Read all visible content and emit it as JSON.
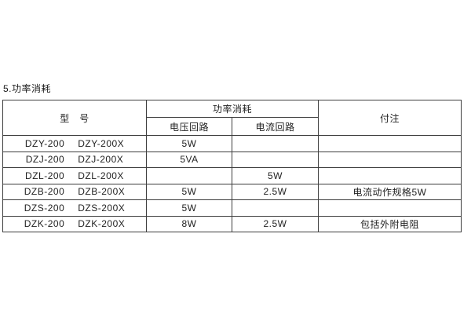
{
  "title": "5.功率消耗",
  "table": {
    "header": {
      "model": "型　号",
      "power_group": "功率消耗",
      "voltage_circuit": "电压回路",
      "current_circuit": "电流回路",
      "notes": "付注"
    },
    "rows": [
      {
        "model": [
          "DZY-200",
          "DZY-200X"
        ],
        "voltage": "5W",
        "current": "",
        "note": ""
      },
      {
        "model": [
          "DZJ-200",
          "DZJ-200X"
        ],
        "voltage": "5VA",
        "current": "",
        "note": ""
      },
      {
        "model": [
          "DZL-200",
          "DZL-200X"
        ],
        "voltage": "",
        "current": "5W",
        "note": ""
      },
      {
        "model": [
          "DZB-200",
          "DZB-200X"
        ],
        "voltage": "5W",
        "current": "2.5W",
        "note": "电流动作规格5W"
      },
      {
        "model": [
          "DZS-200",
          "DZS-200X"
        ],
        "voltage": "5W",
        "current": "",
        "note": ""
      },
      {
        "model": [
          "DZK-200",
          "DZK-200X"
        ],
        "voltage": "8W",
        "current": "2.5W",
        "note": "包括外附电阻"
      }
    ],
    "colors": {
      "border": "#3d3d3d",
      "text": "#1f1f1f",
      "background": "#ffffff"
    }
  }
}
